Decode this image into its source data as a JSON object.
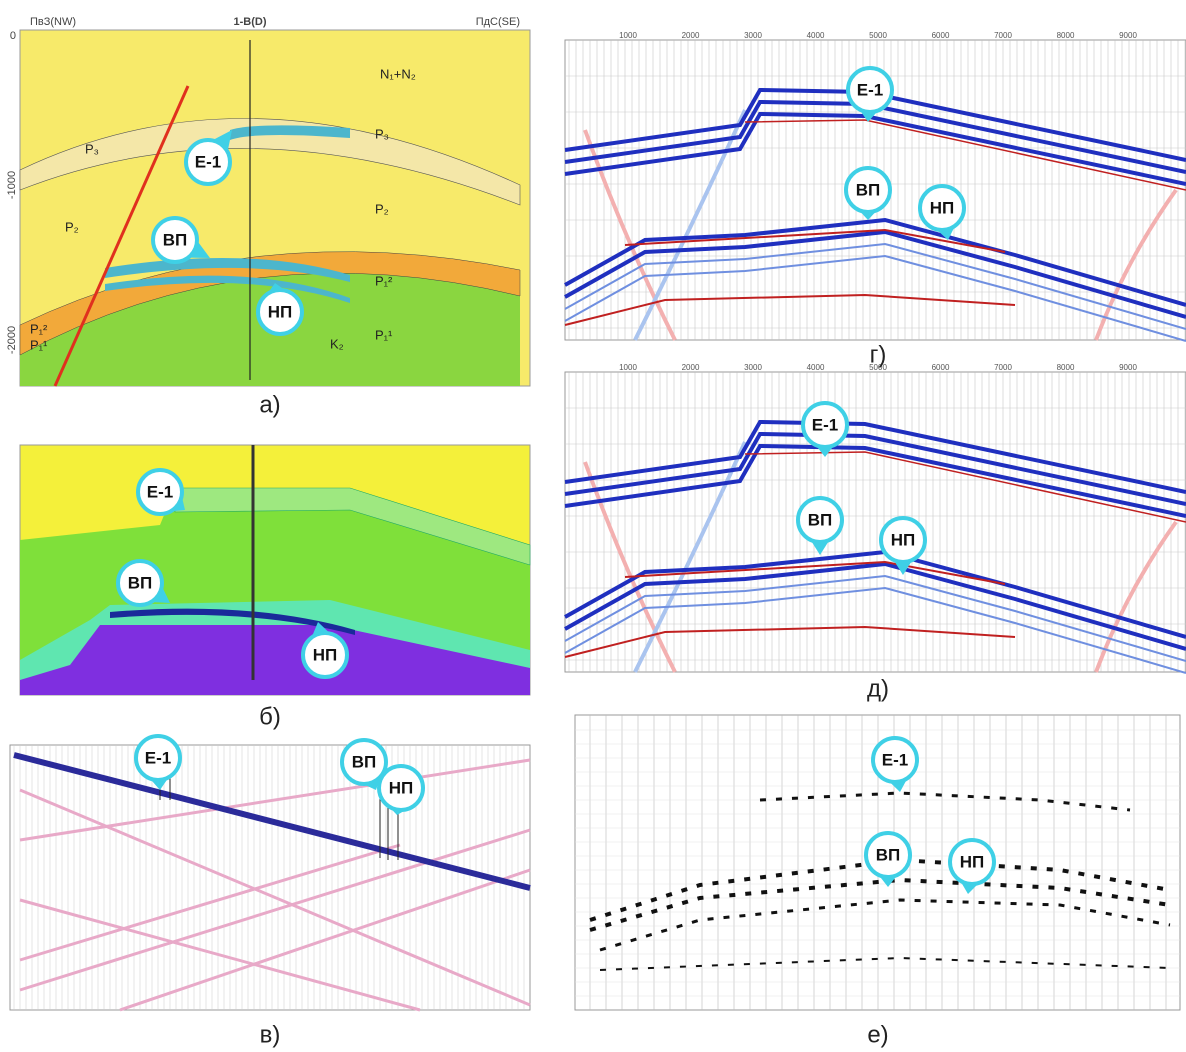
{
  "panels": [
    {
      "label": "а)",
      "header": {
        "left": "ПвЗ(NW)",
        "center": "1-В(D)",
        "right": "ПдС(SE)"
      },
      "depth_ticks": [
        "0",
        "-1000",
        "-2000"
      ],
      "units": [
        "N₁+N₂",
        "P₃",
        "P₃",
        "P₂",
        "P₂",
        "P₁²",
        "P₁¹",
        "K₂",
        "P₁²",
        "P₁¹"
      ],
      "callouts": [
        "Е-1",
        "ВП",
        "НП"
      ]
    },
    {
      "label": "б)",
      "callouts": [
        "Е-1",
        "ВП",
        "НП"
      ]
    },
    {
      "label": "в)",
      "callouts": [
        "Е-1",
        "ВП",
        "НП"
      ]
    },
    {
      "label": "г)",
      "x_ticks": [
        "1000",
        "2000",
        "3000",
        "4000",
        "5000",
        "6000",
        "7000",
        "8000",
        "9000"
      ],
      "callouts": [
        "Е-1",
        "ВП",
        "НП"
      ]
    },
    {
      "label": "д)",
      "x_ticks": [
        "1000",
        "2000",
        "3000",
        "4000",
        "5000",
        "6000",
        "7000",
        "8000",
        "9000"
      ],
      "callouts": [
        "Е-1",
        "ВП",
        "НП"
      ]
    },
    {
      "label": "е)",
      "callouts": [
        "Е-1",
        "ВП",
        "НП"
      ]
    }
  ]
}
